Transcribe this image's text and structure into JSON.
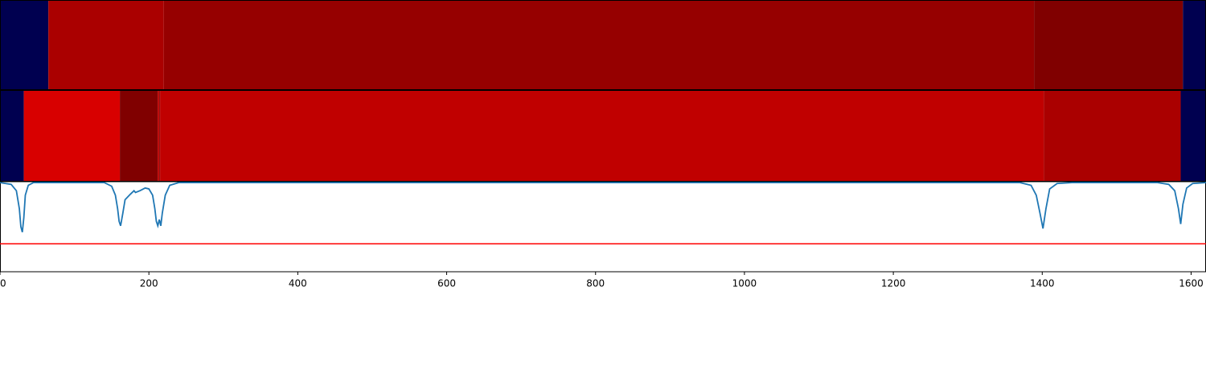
{
  "chart_data": {
    "type": "line",
    "xlim": [
      0,
      1620
    ],
    "xticks": [
      0,
      200,
      400,
      600,
      800,
      1000,
      1200,
      1400,
      1600
    ],
    "ylim": [
      0,
      1
    ],
    "bands": [
      {
        "segments": [
          {
            "x0": 0,
            "x1": 65,
            "color": "#000050"
          },
          {
            "x0": 65,
            "x1": 220,
            "color": "#aa0000"
          },
          {
            "x0": 220,
            "x1": 1389,
            "color": "#960000"
          },
          {
            "x0": 1389,
            "x1": 1589,
            "color": "#800000"
          },
          {
            "x0": 1589,
            "x1": 1620,
            "color": "#000050"
          }
        ]
      },
      {
        "segments": [
          {
            "x0": 0,
            "x1": 32,
            "color": "#000050"
          },
          {
            "x0": 32,
            "x1": 161,
            "color": "#d80000"
          },
          {
            "x0": 161,
            "x1": 212,
            "color": "#800000"
          },
          {
            "x0": 212,
            "x1": 214,
            "color": "#c00000"
          },
          {
            "x0": 214,
            "x1": 215,
            "color": "#800000"
          },
          {
            "x0": 215,
            "x1": 1402,
            "color": "#c00000"
          },
          {
            "x0": 1402,
            "x1": 1586,
            "color": "#aa0000"
          },
          {
            "x0": 1586,
            "x1": 1620,
            "color": "#000050"
          }
        ]
      }
    ],
    "series": [
      {
        "color": "#1f77b4",
        "x": [
          0,
          15,
          22,
          26,
          28,
          30,
          32,
          34,
          38,
          45,
          60,
          140,
          150,
          155,
          158,
          160,
          162,
          165,
          168,
          175,
          180,
          182,
          188,
          195,
          200,
          205,
          208,
          210,
          212,
          214,
          216,
          218,
          222,
          228,
          240,
          300,
          600,
          1000,
          1370,
          1385,
          1392,
          1397,
          1401,
          1405,
          1410,
          1420,
          1440,
          1500,
          1555,
          1570,
          1578,
          1583,
          1586,
          1589,
          1594,
          1602,
          1620
        ],
        "values": [
          0.99,
          0.97,
          0.9,
          0.7,
          0.5,
          0.44,
          0.6,
          0.85,
          0.96,
          0.99,
          0.99,
          0.99,
          0.95,
          0.85,
          0.7,
          0.56,
          0.51,
          0.65,
          0.8,
          0.86,
          0.9,
          0.88,
          0.9,
          0.93,
          0.92,
          0.85,
          0.7,
          0.56,
          0.51,
          0.58,
          0.51,
          0.65,
          0.85,
          0.96,
          0.99,
          0.99,
          0.99,
          0.99,
          0.99,
          0.96,
          0.85,
          0.65,
          0.48,
          0.7,
          0.92,
          0.98,
          0.99,
          0.99,
          0.99,
          0.97,
          0.9,
          0.7,
          0.53,
          0.75,
          0.93,
          0.98,
          0.99
        ]
      }
    ],
    "threshold": {
      "value": 0.31,
      "color": "#ff0000"
    }
  }
}
